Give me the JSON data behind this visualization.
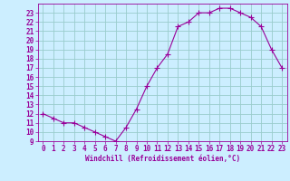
{
  "x": [
    0,
    1,
    2,
    3,
    4,
    5,
    6,
    7,
    8,
    9,
    10,
    11,
    12,
    13,
    14,
    15,
    16,
    17,
    18,
    19,
    20,
    21,
    22,
    23
  ],
  "y": [
    12.0,
    11.5,
    11.0,
    11.0,
    10.5,
    10.0,
    9.5,
    9.0,
    10.5,
    12.5,
    15.0,
    17.0,
    18.5,
    21.5,
    22.0,
    23.0,
    23.0,
    23.5,
    23.5,
    23.0,
    22.5,
    21.5,
    19.0,
    17.0
  ],
  "line_color": "#990099",
  "marker": "D",
  "marker_size": 2.2,
  "bg_color": "#cceeff",
  "grid_color": "#99cccc",
  "xlabel": "Windchill (Refroidissement éolien,°C)",
  "xlabel_color": "#990099",
  "tick_color": "#990099",
  "ylim": [
    9,
    24
  ],
  "xlim": [
    -0.5,
    23.5
  ],
  "yticks": [
    9,
    10,
    11,
    12,
    13,
    14,
    15,
    16,
    17,
    18,
    19,
    20,
    21,
    22,
    23
  ],
  "xticks": [
    0,
    1,
    2,
    3,
    4,
    5,
    6,
    7,
    8,
    9,
    10,
    11,
    12,
    13,
    14,
    15,
    16,
    17,
    18,
    19,
    20,
    21,
    22,
    23
  ],
  "ylabel_fontsize": 5.5,
  "xlabel_fontsize": 5.5,
  "tick_fontsize": 5.5
}
